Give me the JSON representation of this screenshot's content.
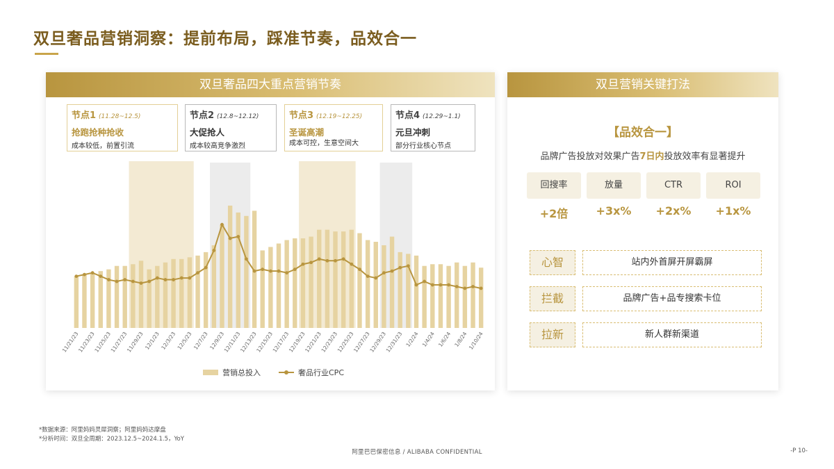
{
  "page": {
    "title": "双旦奢品营销洞察：提前布局，踩准节奏，品效合一"
  },
  "left_panel": {
    "header": "双旦奢品四大重点营销节奏",
    "nodes": [
      {
        "title": "节点1",
        "date": "(11.28~12.5)",
        "head": "抢跑抢种抢收",
        "desc": "成本较低，前置引流",
        "style": "gold"
      },
      {
        "title": "节点2",
        "date": "(12.8~12.12)",
        "head": "大促抢人",
        "desc": "成本较高竞争激烈",
        "style": "gray"
      },
      {
        "title": "节点3",
        "date": "(12.19~12.25)",
        "head": "圣诞高潮",
        "desc": "成本可控，生意空间大",
        "style": "gold"
      },
      {
        "title": "节点4",
        "date": "(12.29~1.1)",
        "head": "元旦冲刺",
        "desc": "部分行业核心节点",
        "style": "gray"
      }
    ],
    "legend": {
      "bar": "营销总投入",
      "line": "奢品行业CPC"
    }
  },
  "chart_data": {
    "type": "bar+line",
    "x": [
      "11/21/23",
      "11/22/23",
      "11/23/23",
      "11/24/23",
      "11/25/23",
      "11/26/23",
      "11/27/23",
      "11/28/23",
      "11/29/23",
      "11/30/23",
      "12/1/23",
      "12/2/23",
      "12/3/23",
      "12/4/23",
      "12/5/23",
      "12/6/23",
      "12/7/23",
      "12/8/23",
      "12/9/23",
      "12/10/23",
      "12/11/23",
      "12/12/23",
      "12/13/23",
      "12/14/23",
      "12/15/23",
      "12/16/23",
      "12/17/23",
      "12/18/23",
      "12/19/23",
      "12/20/23",
      "12/21/23",
      "12/22/23",
      "12/23/23",
      "12/24/23",
      "12/25/23",
      "12/26/23",
      "12/27/23",
      "12/28/23",
      "12/29/23",
      "12/30/23",
      "12/31/23",
      "1/1/24",
      "1/2/24",
      "1/3/24",
      "1/4/24",
      "1/5/24",
      "1/6/24",
      "1/7/24",
      "1/8/24",
      "1/9/24",
      "1/10/24"
    ],
    "x_tick_labels": [
      "11/21/23",
      "11/23/23",
      "11/25/23",
      "11/27/23",
      "11/29/23",
      "12/1/23",
      "12/3/23",
      "12/5/23",
      "12/7/23",
      "12/9/23",
      "12/11/23",
      "12/13/23",
      "12/15/23",
      "12/17/23",
      "12/19/23",
      "12/21/23",
      "12/23/23",
      "12/25/23",
      "12/27/23",
      "12/29/23",
      "12/31/23",
      "1/2/24",
      "1/4/24",
      "1/6/24",
      "1/8/24",
      "1/10/24"
    ],
    "series": [
      {
        "name": "营销总投入",
        "type": "bar",
        "values": [
          30,
          31,
          32,
          33,
          34,
          36,
          36,
          37,
          39,
          34,
          36,
          38,
          40,
          40,
          41,
          42,
          44,
          48,
          60,
          71,
          67,
          65,
          68,
          45,
          47,
          49,
          51,
          52,
          52,
          53,
          57,
          57,
          56,
          56,
          57,
          55,
          51,
          50,
          48,
          53,
          44,
          43,
          42,
          36,
          37,
          37,
          36,
          38,
          36,
          38,
          35
        ]
      },
      {
        "name": "奢品行业CPC",
        "type": "line",
        "values": [
          30,
          31,
          32,
          30,
          28,
          27,
          28,
          27,
          26,
          27,
          29,
          28,
          28,
          29,
          29,
          32,
          35,
          45,
          60,
          52,
          53,
          40,
          33,
          34,
          33,
          33,
          32,
          34,
          37,
          38,
          40,
          39,
          39,
          40,
          37,
          34,
          30,
          29,
          32,
          33,
          35,
          36,
          25,
          27,
          25,
          25,
          25,
          24,
          23,
          24,
          23
        ]
      }
    ],
    "highlight_bands": [
      {
        "from": "11/28/23",
        "to": "12/5/23",
        "style": "gold"
      },
      {
        "from": "12/8/23",
        "to": "12/12/23",
        "style": "gray"
      },
      {
        "from": "12/19/23",
        "to": "12/25/23",
        "style": "gold"
      },
      {
        "from": "12/29/23",
        "to": "1/1/24",
        "style": "gray"
      }
    ],
    "ylim": [
      0,
      100
    ],
    "grid": false,
    "legend_position": "bottom",
    "colors": {
      "bar": "#e6d3a1",
      "line": "#b8953f",
      "band_gold": "#f3ead3",
      "band_gray": "#ececec"
    }
  },
  "right_panel": {
    "header": "双旦营销关键打法",
    "slogan": "【品效合一】",
    "subtitle_pre": "品牌广告投放对效果广告",
    "subtitle_hl": "7日内",
    "subtitle_post": "投放效率有显著提升",
    "metrics": [
      {
        "label": "回搜率",
        "value": "+2倍"
      },
      {
        "label": "放量",
        "value": "+3x%"
      },
      {
        "label": "CTR",
        "value": "+2x%"
      },
      {
        "label": "ROI",
        "value": "+1x%"
      }
    ],
    "tactics": [
      {
        "tag": "心智",
        "text": "站内外首屏开屏霸屏"
      },
      {
        "tag": "拦截",
        "text": "品牌广告+品专搜索卡位"
      },
      {
        "tag": "拉新",
        "text": "新人群新渠道"
      }
    ]
  },
  "footer": {
    "source": "*数据来源：阿里妈妈灵犀洞察；阿里妈妈达摩盘",
    "period": "*分析时间：双旦全周期：2023.12.5~2024.1.5，YoY",
    "confidential": "阿里巴巴保密信息 / ALIBABA CONFIDENTIAL",
    "page_number": "-P 10-"
  },
  "colors": {
    "accent": "#b8953f",
    "title": "#7a5c1e"
  }
}
